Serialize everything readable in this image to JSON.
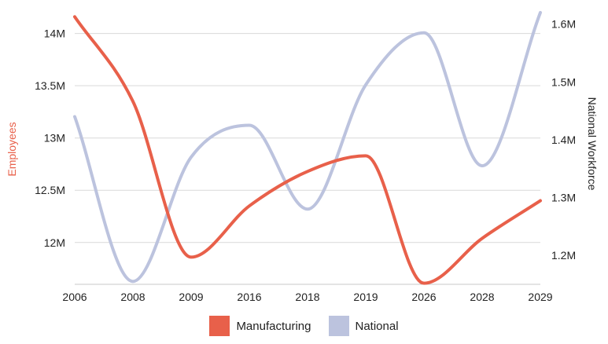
{
  "chart_data": {
    "type": "line",
    "categories": [
      "2006",
      "2008",
      "2009",
      "2016",
      "2018",
      "2019",
      "2026",
      "2028",
      "2029"
    ],
    "series": [
      {
        "name": "Manufacturing",
        "axis": "left",
        "color": "#e8604a",
        "values": [
          14.16,
          13.35,
          11.86,
          12.35,
          12.68,
          12.83,
          11.61,
          12.04,
          12.4
        ]
      },
      {
        "name": "National",
        "axis": "right",
        "color": "#bcc3de",
        "values": [
          1.44,
          1.155,
          1.37,
          1.425,
          1.28,
          1.495,
          1.585,
          1.355,
          1.62
        ]
      }
    ],
    "y_left": {
      "label": "Employees",
      "label_color": "#e8604a",
      "range": [
        11.6,
        14.2
      ],
      "ticks": [
        12,
        12.5,
        13,
        13.5,
        14
      ],
      "tick_labels": [
        "12M",
        "12.5M",
        "13M",
        "13.5M",
        "14M"
      ]
    },
    "y_right": {
      "label": "National Workforce",
      "label_color": "#222222",
      "range": [
        1.15,
        1.62
      ],
      "ticks": [
        1.2,
        1.3,
        1.4,
        1.5,
        1.6
      ],
      "tick_labels": [
        "1.2M",
        "1.3M",
        "1.4M",
        "1.5M",
        "1.6M"
      ]
    },
    "grid": true,
    "grid_color": "#d9d9d9",
    "legend_position": "bottom"
  }
}
